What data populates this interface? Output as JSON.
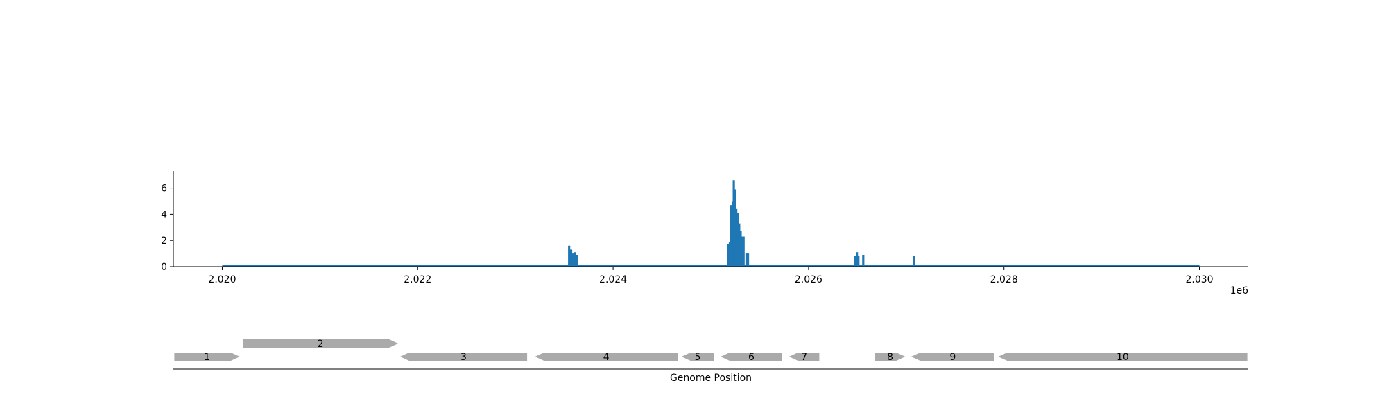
{
  "chart_data": [
    {
      "type": "bar",
      "title": "",
      "xlabel": "",
      "ylabel": "",
      "x_offset_label": "1e6",
      "xlim": [
        2019500,
        2030500
      ],
      "ylim": [
        0,
        7.3
      ],
      "x_ticks": [
        {
          "value": 2020000,
          "label": "2.020"
        },
        {
          "value": 2022000,
          "label": "2.022"
        },
        {
          "value": 2024000,
          "label": "2.024"
        },
        {
          "value": 2026000,
          "label": "2.026"
        },
        {
          "value": 2028000,
          "label": "2.028"
        },
        {
          "value": 2030000,
          "label": "2.030"
        }
      ],
      "y_ticks": [
        {
          "value": 0,
          "label": "0"
        },
        {
          "value": 2,
          "label": "2"
        },
        {
          "value": 4,
          "label": "4"
        },
        {
          "value": 6,
          "label": "6"
        }
      ],
      "baseline_range": [
        2020000,
        2030000
      ],
      "baseline_value": 0.05,
      "bar_color": "#1f77b4",
      "grid": false,
      "series": [
        {
          "points": [
            {
              "x": 2023550,
              "y": 1.6
            },
            {
              "x": 2023570,
              "y": 1.3
            },
            {
              "x": 2023590,
              "y": 1.0
            },
            {
              "x": 2023610,
              "y": 1.1
            },
            {
              "x": 2023630,
              "y": 0.9
            },
            {
              "x": 2025180,
              "y": 1.7
            },
            {
              "x": 2025195,
              "y": 1.9
            },
            {
              "x": 2025210,
              "y": 4.7
            },
            {
              "x": 2025225,
              "y": 5.0
            },
            {
              "x": 2025235,
              "y": 6.6
            },
            {
              "x": 2025245,
              "y": 5.9
            },
            {
              "x": 2025260,
              "y": 4.4
            },
            {
              "x": 2025275,
              "y": 4.1
            },
            {
              "x": 2025290,
              "y": 3.3
            },
            {
              "x": 2025305,
              "y": 2.7
            },
            {
              "x": 2025320,
              "y": 2.3
            },
            {
              "x": 2025335,
              "y": 2.3
            },
            {
              "x": 2025365,
              "y": 1.0
            },
            {
              "x": 2025380,
              "y": 1.0
            },
            {
              "x": 2026480,
              "y": 0.8
            },
            {
              "x": 2026495,
              "y": 1.1
            },
            {
              "x": 2026510,
              "y": 0.8
            },
            {
              "x": 2026560,
              "y": 0.9
            },
            {
              "x": 2027080,
              "y": 0.8
            }
          ]
        }
      ]
    },
    {
      "type": "gene-map",
      "xlabel": "Genome Position",
      "xlim": [
        2019500,
        2030500
      ],
      "gene_color": "#aaaaaa",
      "genes": [
        {
          "label": "1",
          "start": 2019510,
          "end": 2020180,
          "strand": "+",
          "row": 0
        },
        {
          "label": "2",
          "start": 2020210,
          "end": 2021800,
          "strand": "+",
          "row": 1
        },
        {
          "label": "3",
          "start": 2021820,
          "end": 2023120,
          "strand": "-",
          "row": 0
        },
        {
          "label": "4",
          "start": 2023200,
          "end": 2024660,
          "strand": "-",
          "row": 0
        },
        {
          "label": "5",
          "start": 2024700,
          "end": 2025030,
          "strand": "-",
          "row": 0
        },
        {
          "label": "6",
          "start": 2025100,
          "end": 2025730,
          "strand": "-",
          "row": 0
        },
        {
          "label": "7",
          "start": 2025800,
          "end": 2026110,
          "strand": "-",
          "row": 0
        },
        {
          "label": "8",
          "start": 2026680,
          "end": 2026990,
          "strand": "+",
          "row": 0
        },
        {
          "label": "9",
          "start": 2027050,
          "end": 2027900,
          "strand": "-",
          "row": 0
        },
        {
          "label": "10",
          "start": 2027940,
          "end": 2030490,
          "strand": "-",
          "row": 0
        }
      ]
    }
  ]
}
